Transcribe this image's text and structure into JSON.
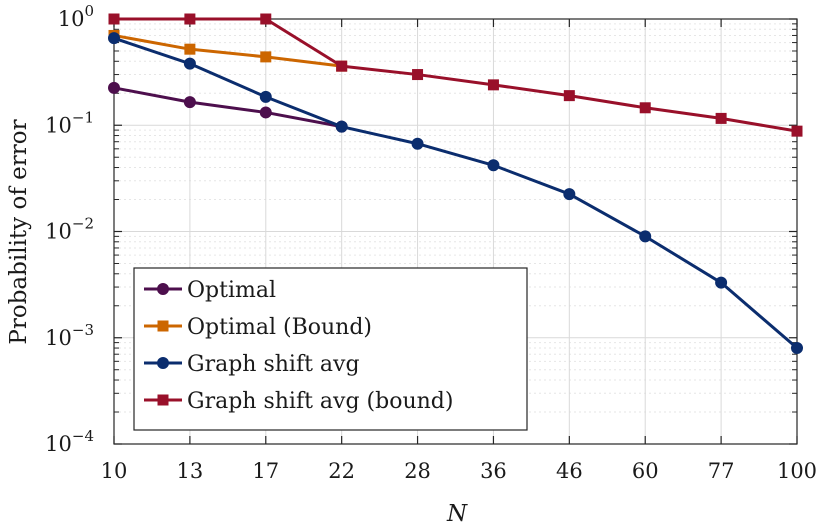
{
  "chart_data": {
    "type": "line",
    "title": "",
    "xlabel": "N",
    "ylabel": "Probability of error",
    "x_scale": "categorical",
    "y_scale": "log",
    "ylim": [
      0.0001,
      1
    ],
    "grid": true,
    "legend_position": "bottom-left",
    "categories": [
      "10",
      "13",
      "17",
      "22",
      "28",
      "36",
      "46",
      "60",
      "77",
      "100"
    ],
    "y_ticks": [
      {
        "value": 0.0001,
        "base": "10",
        "exp": "−4"
      },
      {
        "value": 0.001,
        "base": "10",
        "exp": "−3"
      },
      {
        "value": 0.01,
        "base": "10",
        "exp": "−2"
      },
      {
        "value": 0.1,
        "base": "10",
        "exp": "−1"
      },
      {
        "value": 1,
        "base": "10",
        "exp": "0"
      }
    ],
    "series": [
      {
        "name": "Optimal",
        "color": "#4d0f4d",
        "marker": "circle",
        "points": [
          [
            0,
            0.225
          ],
          [
            1,
            0.165
          ],
          [
            2,
            0.132
          ],
          [
            3,
            0.097
          ]
        ]
      },
      {
        "name": "Optimal (Bound)",
        "color": "#cc6600",
        "marker": "square",
        "points": [
          [
            0,
            0.7
          ],
          [
            1,
            0.52
          ],
          [
            2,
            0.44
          ],
          [
            3,
            0.36
          ]
        ]
      },
      {
        "name": "Graph shift avg",
        "color": "#0b2d6e",
        "marker": "circle",
        "points": [
          [
            0,
            0.66
          ],
          [
            1,
            0.38
          ],
          [
            2,
            0.185
          ],
          [
            3,
            0.097
          ],
          [
            4,
            0.067
          ],
          [
            5,
            0.042
          ],
          [
            6,
            0.0225
          ],
          [
            7,
            0.009
          ],
          [
            8,
            0.0033
          ],
          [
            9,
            0.0008
          ]
        ]
      },
      {
        "name": "Graph shift avg (bound)",
        "color": "#99102a",
        "marker": "square",
        "points": [
          [
            0,
            1.0
          ],
          [
            1,
            1.0
          ],
          [
            2,
            1.0
          ],
          [
            3,
            0.36
          ],
          [
            4,
            0.3
          ],
          [
            5,
            0.24
          ],
          [
            6,
            0.19
          ],
          [
            7,
            0.146
          ],
          [
            8,
            0.116
          ],
          [
            9,
            0.088
          ]
        ]
      }
    ]
  }
}
